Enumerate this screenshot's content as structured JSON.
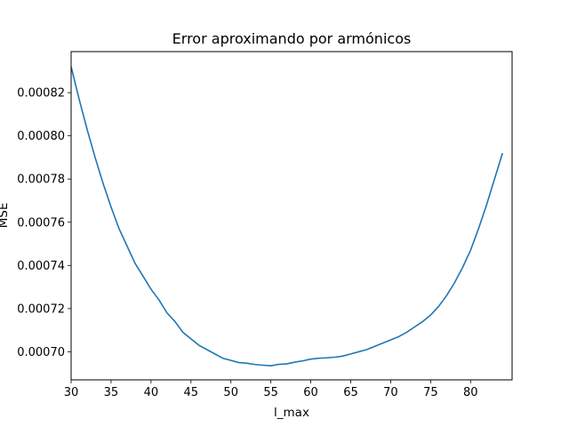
{
  "chart_data": {
    "type": "line",
    "title": "Error aproximando por armónicos",
    "xlabel": "l_max",
    "ylabel": "MSE",
    "xlim": [
      30,
      85.2
    ],
    "ylim": [
      0.000687,
      0.000839
    ],
    "xticks": [
      30,
      35,
      40,
      45,
      50,
      55,
      60,
      65,
      70,
      75,
      80
    ],
    "yticks": [
      0.0007,
      0.00072,
      0.00074,
      0.00076,
      0.00078,
      0.0008,
      0.00082
    ],
    "ytick_labels": [
      "0.00070",
      "0.00072",
      "0.00074",
      "0.00076",
      "0.00078",
      "0.00080",
      "0.00082"
    ],
    "grid": false,
    "series": [
      {
        "color": "#1f77b4",
        "x": [
          30,
          31,
          32,
          33,
          34,
          35,
          36,
          37,
          38,
          39,
          40,
          41,
          42,
          43,
          44,
          45,
          46,
          47,
          48,
          49,
          50,
          51,
          52,
          53,
          54,
          55,
          56,
          57,
          58,
          59,
          60,
          61,
          62,
          63,
          64,
          65,
          66,
          67,
          68,
          69,
          70,
          71,
          72,
          73,
          74,
          75,
          76,
          77,
          78,
          79,
          80,
          81,
          82,
          83,
          84
        ],
        "y": [
          0.000832,
          0.000817,
          0.000803,
          0.00079,
          0.000778,
          0.000767,
          0.000757,
          0.000749,
          0.000741,
          0.000735,
          0.000729,
          0.000724,
          0.000718,
          0.000714,
          0.000709,
          0.000706,
          0.000703,
          0.000701,
          0.000699,
          0.000697,
          0.000696,
          0.000695,
          0.0006947,
          0.0006941,
          0.0006938,
          0.0006935,
          0.0006942,
          0.0006944,
          0.0006952,
          0.0006958,
          0.0006966,
          0.000697,
          0.0006972,
          0.0006975,
          0.000698,
          0.000699,
          0.0007,
          0.000701,
          0.0007025,
          0.000704,
          0.0007055,
          0.000707,
          0.000709,
          0.0007115,
          0.000714,
          0.000717,
          0.000721,
          0.000726,
          0.000732,
          0.000739,
          0.000747,
          0.000757,
          0.000768,
          0.00078,
          0.000792
        ]
      }
    ]
  }
}
